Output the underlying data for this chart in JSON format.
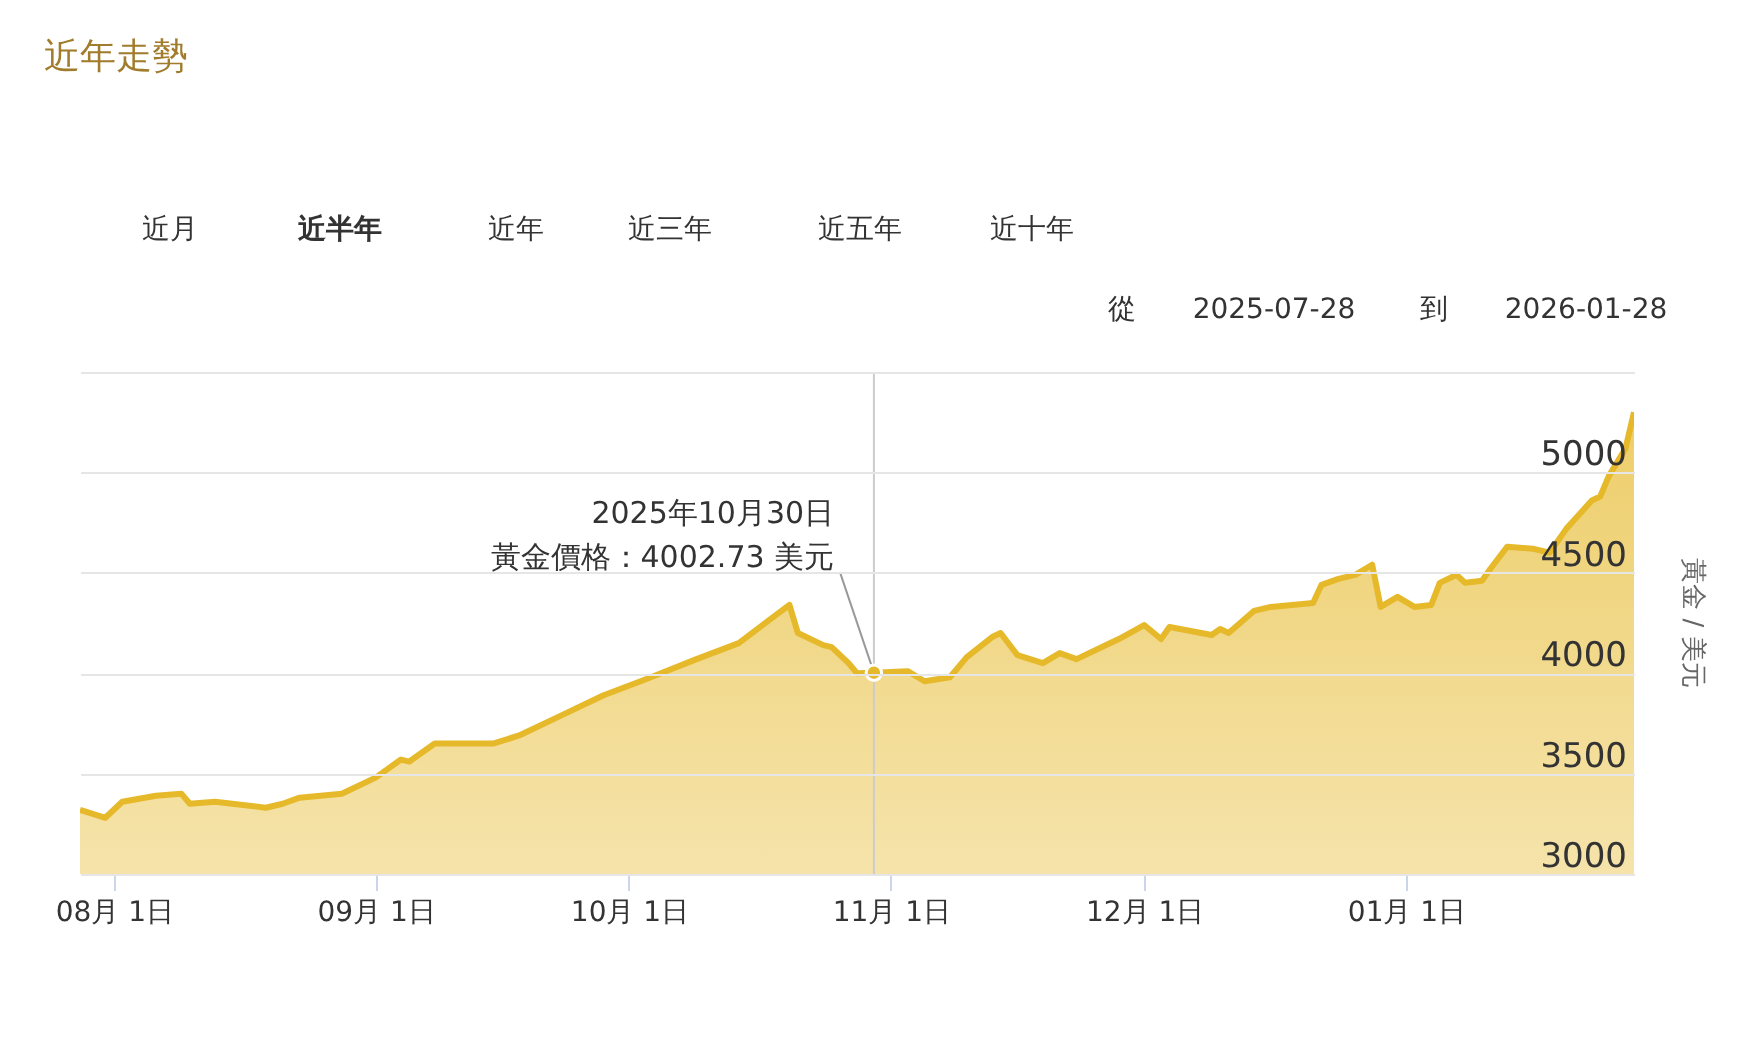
{
  "chart_data": {
    "type": "area",
    "title": "近年走勢",
    "ylabel": "黃金 / 美元",
    "annotations": [
      "近月",
      "近半年",
      "近年",
      "近三年",
      "近五年",
      "近十年",
      "從",
      "2025-07-28",
      "到",
      "2026-01-28",
      "2025年10月30日",
      {
        "text": "黃金價格：4002.73 美元",
        "x": "2025-10-30",
        "y": 4002.73
      }
    ],
    "x": [
      "2025-07-28",
      "2025-07-31",
      "2025-08-02",
      "2025-08-06",
      "2025-08-09",
      "2025-08-10",
      "2025-08-13",
      "2025-08-15",
      "2025-08-19",
      "2025-08-21",
      "2025-08-23",
      "2025-08-28",
      "2025-09-01",
      "2025-09-04",
      "2025-09-05",
      "2025-09-08",
      "2025-09-10",
      "2025-09-15",
      "2025-09-18",
      "2025-09-23",
      "2025-09-28",
      "2025-10-03",
      "2025-10-09",
      "2025-10-14",
      "2025-10-20",
      "2025-10-21",
      "2025-10-24",
      "2025-10-25",
      "2025-10-27",
      "2025-10-28",
      "2025-10-30",
      "2025-11-03",
      "2025-11-05",
      "2025-11-08",
      "2025-11-10",
      "2025-11-13",
      "2025-11-14",
      "2025-11-16",
      "2025-11-19",
      "2025-11-21",
      "2025-11-23",
      "2025-11-27",
      "2025-11-28",
      "2025-12-01",
      "2025-12-03",
      "2025-12-04",
      "2025-12-09",
      "2025-12-10",
      "2025-12-11",
      "2025-12-14",
      "2025-12-16",
      "2025-12-21",
      "2025-12-22",
      "2025-12-24",
      "2025-12-26",
      "2025-12-28",
      "2025-12-29",
      "2025-12-31",
      "2026-01-02",
      "2026-01-04",
      "2026-01-05",
      "2026-01-07",
      "2026-01-08",
      "2026-01-10",
      "2026-01-11",
      "2026-01-13",
      "2026-01-16",
      "2026-01-18",
      "2026-01-20",
      "2026-01-23",
      "2026-01-24",
      "2026-01-25",
      "2026-01-27",
      "2026-01-28"
    ],
    "series": [
      {
        "color": "#e6b92a",
        "values": [
          3320,
          3280,
          3360,
          3390,
          3400,
          3350,
          3360,
          3350,
          3330,
          3350,
          3380,
          3400,
          3480,
          3570,
          3560,
          3650,
          3650,
          3650,
          3690,
          3790,
          3890,
          3970,
          4070,
          4150,
          4340,
          4200,
          4140,
          4130,
          4050,
          4000,
          4002.73,
          4010,
          3960,
          3980,
          4080,
          4180,
          4200,
          4090,
          4050,
          4100,
          4070,
          4150,
          4170,
          4240,
          4170,
          4230,
          4190,
          4220,
          4200,
          4310,
          4330,
          4350,
          4440,
          4470,
          4490,
          4540,
          4330,
          4380,
          4330,
          4340,
          4450,
          4490,
          4450,
          4460,
          4520,
          4630,
          4620,
          4600,
          4720,
          4860,
          4880,
          4980,
          5120,
          5300
        ]
      }
    ],
    "xlim": [
      "2025-07-28",
      "2026-01-28"
    ],
    "xticks": [
      {
        "value": "2025-08-01",
        "label": "08月 1日"
      },
      {
        "value": "2025-09-01",
        "label": "09月 1日"
      },
      {
        "value": "2025-10-01",
        "label": "10月 1日"
      },
      {
        "value": "2025-11-01",
        "label": "11月 1日"
      },
      {
        "value": "2025-12-01",
        "label": "12月 1日"
      },
      {
        "value": "2026-01-01",
        "label": "01月 1日"
      }
    ],
    "ylim": [
      3000,
      5500
    ],
    "yticks": [
      3000,
      3500,
      4000,
      4500,
      5000,
      {
        "value": 5500,
        "label": null
      }
    ],
    "ref_lines": [
      {
        "axis": "x",
        "value": "2025-10-30",
        "color": "#cccccc"
      }
    ],
    "grid": "y"
  }
}
